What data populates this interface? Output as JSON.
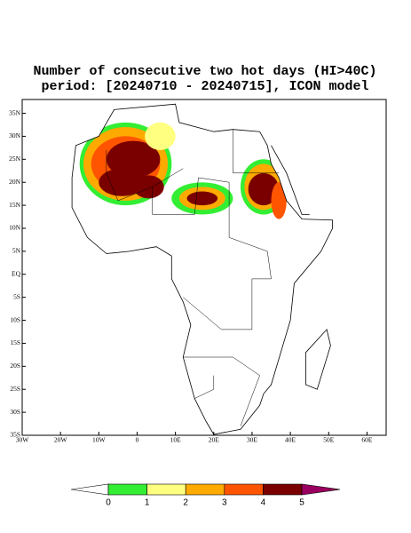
{
  "title": {
    "line1": "Number of consecutive two hot days (HI>40C)",
    "line2": "period: [20240710 - 20240715], ICON model"
  },
  "map": {
    "lon_range": [
      -30,
      65
    ],
    "lat_range": [
      -35,
      38
    ],
    "lat_ticks": [
      {
        "value": 35,
        "label": "35N"
      },
      {
        "value": 30,
        "label": "30N"
      },
      {
        "value": 25,
        "label": "25N"
      },
      {
        "value": 20,
        "label": "20N"
      },
      {
        "value": 15,
        "label": "15N"
      },
      {
        "value": 10,
        "label": "10N"
      },
      {
        "value": 5,
        "label": "5N"
      },
      {
        "value": 0,
        "label": "EQ"
      },
      {
        "value": -5,
        "label": "5S"
      },
      {
        "value": -10,
        "label": "10S"
      },
      {
        "value": -15,
        "label": "15S"
      },
      {
        "value": -20,
        "label": "20S"
      },
      {
        "value": -25,
        "label": "25S"
      },
      {
        "value": -30,
        "label": "30S"
      },
      {
        "value": -35,
        "label": "35S"
      }
    ],
    "lon_ticks": [
      {
        "value": -30,
        "label": "30W"
      },
      {
        "value": -20,
        "label": "20W"
      },
      {
        "value": -10,
        "label": "10W"
      },
      0,
      {
        "value": 10,
        "label": "10E"
      },
      {
        "value": 20,
        "label": "20E"
      },
      {
        "value": 30,
        "label": "30E"
      },
      {
        "value": 40,
        "label": "40E"
      },
      {
        "value": 50,
        "label": "50E"
      },
      {
        "value": 60,
        "label": "60E"
      }
    ]
  },
  "colorbar": {
    "levels": [
      0,
      1,
      2,
      3,
      4,
      5
    ],
    "colors": [
      "#ffffff",
      "#33ee33",
      "#ffff80",
      "#ffaa00",
      "#ff5500",
      "#7a0000",
      "#9a0060"
    ]
  }
}
